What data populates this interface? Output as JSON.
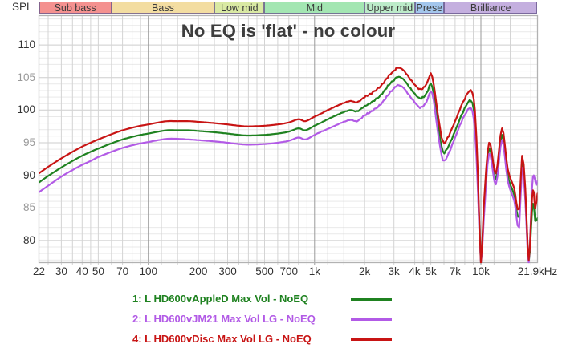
{
  "header": {
    "spl_label": "SPL",
    "bands": [
      {
        "name": "sub-bass",
        "label": "Sub bass",
        "f1": 22,
        "f2": 60,
        "color": "#f4918f"
      },
      {
        "name": "bass",
        "label": "Bass",
        "f1": 60,
        "f2": 250,
        "color": "#f3dda1"
      },
      {
        "name": "low-mid",
        "label": "Low mid",
        "f1": 250,
        "f2": 500,
        "color": "#d9e9a3"
      },
      {
        "name": "mid",
        "label": "Mid",
        "f1": 500,
        "f2": 2000,
        "color": "#a3e6b2"
      },
      {
        "name": "upper-mid",
        "label": "Upper mid",
        "f1": 2000,
        "f2": 4000,
        "color": "#bcebc9"
      },
      {
        "name": "presence",
        "label": "Presence",
        "f1": 4000,
        "f2": 6000,
        "color": "#a3c6ec"
      },
      {
        "name": "brilliance",
        "label": "Brilliance",
        "f1": 6000,
        "f2": 21900,
        "color": "#c4afdf"
      }
    ]
  },
  "title": "No EQ is 'flat' - no colour",
  "axis": {
    "x_min": 22,
    "x_max": 21900,
    "y_top": 114.5,
    "y_bottom": 76.6,
    "x_ticks": [
      {
        "f": 22,
        "label": "22"
      },
      {
        "f": 30,
        "label": "30"
      },
      {
        "f": 40,
        "label": "40"
      },
      {
        "f": 50,
        "label": "50"
      },
      {
        "f": 70,
        "label": "70"
      },
      {
        "f": 100,
        "label": "100"
      },
      {
        "f": 200,
        "label": "200"
      },
      {
        "f": 300,
        "label": "300"
      },
      {
        "f": 500,
        "label": "500"
      },
      {
        "f": 700,
        "label": "700"
      },
      {
        "f": 1000,
        "label": "1k"
      },
      {
        "f": 2000,
        "label": "2k"
      },
      {
        "f": 3000,
        "label": "3k"
      },
      {
        "f": 4000,
        "label": "4k"
      },
      {
        "f": 5000,
        "label": "5k"
      },
      {
        "f": 7000,
        "label": "7k"
      },
      {
        "f": 10000,
        "label": "10k"
      },
      {
        "f": 21900,
        "label": "21.9kHz"
      }
    ],
    "y_ticks": [
      {
        "v": 110,
        "label": "110",
        "major": true
      },
      {
        "v": 105,
        "label": "105",
        "major": false
      },
      {
        "v": 100,
        "label": "100",
        "major": true
      },
      {
        "v": 95,
        "label": "95",
        "major": false
      },
      {
        "v": 90,
        "label": "90",
        "major": true
      },
      {
        "v": 85,
        "label": "85",
        "major": false
      },
      {
        "v": 80,
        "label": "80",
        "major": true
      }
    ],
    "minor_freqs": [
      25,
      30,
      35,
      40,
      45,
      50,
      60,
      70,
      80,
      90,
      100,
      120,
      150,
      200,
      250,
      300,
      350,
      400,
      450,
      500,
      600,
      700,
      800,
      900,
      1000,
      1200,
      1500,
      2000,
      2500,
      3000,
      3500,
      4000,
      4500,
      5000,
      6000,
      7000,
      8000,
      9000,
      10000,
      12000,
      15000,
      20000
    ],
    "decade_freqs": [
      100,
      1000,
      10000
    ],
    "major_tick_color": "#333333",
    "minor_tick_color": "#999999"
  },
  "chart_data": {
    "type": "line",
    "title": "No EQ is 'flat' - no colour",
    "ylabel": "SPL",
    "x_scale": "log",
    "xlim": [
      22,
      21900
    ],
    "ylim": [
      76.6,
      114.5
    ],
    "grid": true,
    "legend_position": "bottom",
    "series": [
      {
        "label": "1: L HD600vAppleD Max Vol - NoEQ",
        "color": "#1f8220",
        "points": [
          [
            22,
            88.9
          ],
          [
            25,
            89.9
          ],
          [
            30,
            91.2
          ],
          [
            35,
            92.2
          ],
          [
            40,
            93.0
          ],
          [
            45,
            93.6
          ],
          [
            50,
            94.1
          ],
          [
            60,
            94.9
          ],
          [
            70,
            95.5
          ],
          [
            80,
            95.9
          ],
          [
            90,
            96.2
          ],
          [
            100,
            96.4
          ],
          [
            115,
            96.7
          ],
          [
            130,
            96.9
          ],
          [
            150,
            96.9
          ],
          [
            175,
            96.9
          ],
          [
            200,
            96.8
          ],
          [
            250,
            96.6
          ],
          [
            300,
            96.4
          ],
          [
            350,
            96.2
          ],
          [
            400,
            96.1
          ],
          [
            500,
            96.2
          ],
          [
            600,
            96.4
          ],
          [
            700,
            96.7
          ],
          [
            800,
            97.2
          ],
          [
            880,
            96.9
          ],
          [
            1000,
            97.6
          ],
          [
            1100,
            98.1
          ],
          [
            1200,
            98.6
          ],
          [
            1350,
            99.2
          ],
          [
            1500,
            99.7
          ],
          [
            1650,
            100.0
          ],
          [
            1800,
            99.8
          ],
          [
            2000,
            100.6
          ],
          [
            2200,
            101.2
          ],
          [
            2500,
            102.3
          ],
          [
            2800,
            103.9
          ],
          [
            3000,
            104.6
          ],
          [
            3150,
            105.1
          ],
          [
            3400,
            104.8
          ],
          [
            3700,
            103.6
          ],
          [
            4000,
            102.5
          ],
          [
            4300,
            101.8
          ],
          [
            4600,
            102.2
          ],
          [
            4800,
            103.0
          ],
          [
            5000,
            104.1
          ],
          [
            5200,
            102.5
          ],
          [
            5500,
            98.0
          ],
          [
            5900,
            93.7
          ],
          [
            6300,
            94.2
          ],
          [
            7000,
            96.8
          ],
          [
            7800,
            99.7
          ],
          [
            8700,
            101.5
          ],
          [
            9200,
            98.3
          ],
          [
            9600,
            88.5
          ],
          [
            10000,
            76.6
          ],
          [
            10400,
            84.0
          ],
          [
            11200,
            94.1
          ],
          [
            12300,
            89.4
          ],
          [
            13400,
            96.2
          ],
          [
            14500,
            90.0
          ],
          [
            15900,
            86.9
          ],
          [
            16300,
            85.0
          ],
          [
            17000,
            83.6
          ],
          [
            17700,
            92.0
          ],
          [
            18500,
            87.0
          ],
          [
            19400,
            76.8
          ],
          [
            20300,
            84.5
          ],
          [
            20800,
            85.5
          ],
          [
            21200,
            83.0
          ],
          [
            21900,
            83.4
          ]
        ]
      },
      {
        "label": "2: L HD600vJM21 Max Vol LG - NoEQ",
        "color": "#b25ae6",
        "points": [
          [
            22,
            87.4
          ],
          [
            25,
            88.4
          ],
          [
            30,
            89.8
          ],
          [
            35,
            90.8
          ],
          [
            40,
            91.6
          ],
          [
            45,
            92.2
          ],
          [
            50,
            92.8
          ],
          [
            60,
            93.6
          ],
          [
            70,
            94.2
          ],
          [
            80,
            94.6
          ],
          [
            90,
            94.9
          ],
          [
            100,
            95.1
          ],
          [
            115,
            95.4
          ],
          [
            130,
            95.6
          ],
          [
            150,
            95.6
          ],
          [
            175,
            95.5
          ],
          [
            200,
            95.4
          ],
          [
            250,
            95.2
          ],
          [
            300,
            95.0
          ],
          [
            350,
            94.8
          ],
          [
            400,
            94.7
          ],
          [
            500,
            94.8
          ],
          [
            600,
            95.0
          ],
          [
            700,
            95.3
          ],
          [
            800,
            95.8
          ],
          [
            880,
            95.5
          ],
          [
            1000,
            96.2
          ],
          [
            1100,
            96.7
          ],
          [
            1200,
            97.1
          ],
          [
            1350,
            97.7
          ],
          [
            1500,
            98.2
          ],
          [
            1650,
            98.5
          ],
          [
            1800,
            98.3
          ],
          [
            2000,
            99.2
          ],
          [
            2200,
            99.8
          ],
          [
            2500,
            100.9
          ],
          [
            2800,
            102.5
          ],
          [
            3000,
            103.3
          ],
          [
            3150,
            103.8
          ],
          [
            3400,
            103.5
          ],
          [
            3700,
            102.3
          ],
          [
            4000,
            101.2
          ],
          [
            4300,
            100.4
          ],
          [
            4600,
            100.9
          ],
          [
            4800,
            101.8
          ],
          [
            5000,
            102.9
          ],
          [
            5200,
            101.5
          ],
          [
            5500,
            96.8
          ],
          [
            5900,
            92.4
          ],
          [
            6300,
            93.0
          ],
          [
            7000,
            95.8
          ],
          [
            7800,
            98.7
          ],
          [
            8700,
            100.3
          ],
          [
            9200,
            97.0
          ],
          [
            9600,
            87.5
          ],
          [
            10000,
            76.6
          ],
          [
            10400,
            83.0
          ],
          [
            11200,
            93.3
          ],
          [
            12300,
            88.6
          ],
          [
            13400,
            95.4
          ],
          [
            14500,
            89.2
          ],
          [
            15900,
            86.0
          ],
          [
            16300,
            84.0
          ],
          [
            17000,
            82.0
          ],
          [
            17700,
            91.2
          ],
          [
            18500,
            86.2
          ],
          [
            19400,
            76.6
          ],
          [
            20300,
            88.0
          ],
          [
            20800,
            90.0
          ],
          [
            21500,
            88.5
          ],
          [
            21900,
            89.2
          ]
        ]
      },
      {
        "label": "4: L HD600vDisc Max Vol LG - NoEQ",
        "color": "#c81414",
        "points": [
          [
            22,
            90.3
          ],
          [
            25,
            91.3
          ],
          [
            30,
            92.6
          ],
          [
            35,
            93.6
          ],
          [
            40,
            94.4
          ],
          [
            45,
            95.0
          ],
          [
            50,
            95.5
          ],
          [
            60,
            96.3
          ],
          [
            70,
            96.9
          ],
          [
            80,
            97.3
          ],
          [
            90,
            97.6
          ],
          [
            100,
            97.8
          ],
          [
            115,
            98.1
          ],
          [
            130,
            98.3
          ],
          [
            150,
            98.3
          ],
          [
            175,
            98.3
          ],
          [
            200,
            98.2
          ],
          [
            250,
            98.0
          ],
          [
            300,
            97.8
          ],
          [
            350,
            97.6
          ],
          [
            400,
            97.5
          ],
          [
            500,
            97.6
          ],
          [
            600,
            97.8
          ],
          [
            700,
            98.1
          ],
          [
            800,
            98.6
          ],
          [
            880,
            98.3
          ],
          [
            1000,
            99.0
          ],
          [
            1100,
            99.5
          ],
          [
            1200,
            100.0
          ],
          [
            1350,
            100.6
          ],
          [
            1500,
            101.1
          ],
          [
            1650,
            101.4
          ],
          [
            1800,
            101.2
          ],
          [
            2000,
            102.0
          ],
          [
            2200,
            102.6
          ],
          [
            2500,
            103.7
          ],
          [
            2800,
            105.3
          ],
          [
            3000,
            106.0
          ],
          [
            3150,
            106.5
          ],
          [
            3400,
            106.2
          ],
          [
            3700,
            105.0
          ],
          [
            4000,
            103.9
          ],
          [
            4300,
            103.2
          ],
          [
            4600,
            103.6
          ],
          [
            4800,
            104.5
          ],
          [
            5000,
            105.6
          ],
          [
            5200,
            104.0
          ],
          [
            5500,
            99.5
          ],
          [
            5900,
            95.2
          ],
          [
            6300,
            95.7
          ],
          [
            7000,
            98.3
          ],
          [
            7800,
            101.2
          ],
          [
            8700,
            103.0
          ],
          [
            9200,
            100.0
          ],
          [
            9600,
            90.0
          ],
          [
            10000,
            76.6
          ],
          [
            10400,
            85.0
          ],
          [
            11200,
            95.0
          ],
          [
            12300,
            90.3
          ],
          [
            13400,
            97.2
          ],
          [
            14500,
            91.0
          ],
          [
            15900,
            87.9
          ],
          [
            16300,
            86.0
          ],
          [
            17000,
            84.8
          ],
          [
            17700,
            93.0
          ],
          [
            18500,
            88.0
          ],
          [
            19400,
            77.0
          ],
          [
            20300,
            86.5
          ],
          [
            20800,
            87.4
          ],
          [
            21200,
            84.9
          ],
          [
            21900,
            87.2
          ]
        ]
      }
    ]
  },
  "colors": {
    "grid_minor": "#e9e9e9",
    "grid_major": "#cdcdcd",
    "grid_vert": "#d4d4d4",
    "grid_decade": "#9a9a9a",
    "axis_box": "#b2b2b2",
    "title": "#3d3d3d"
  }
}
